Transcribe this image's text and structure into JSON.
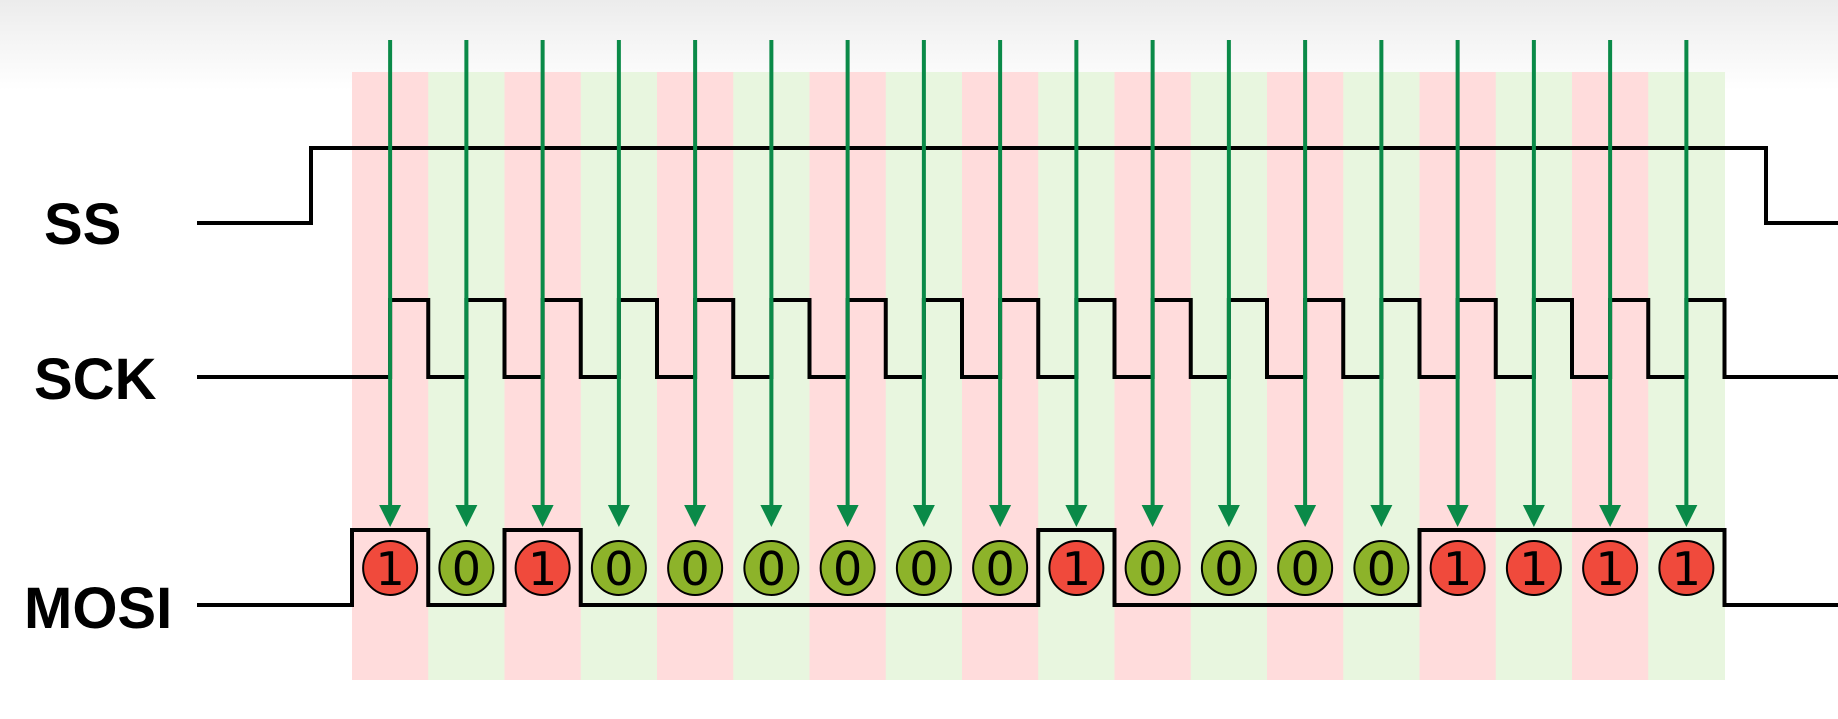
{
  "signals": [
    {
      "id": "ss",
      "label": "SS"
    },
    {
      "id": "sck",
      "label": "SCK"
    },
    {
      "id": "mosi",
      "label": "MOSI"
    }
  ],
  "mosi_bits": [
    "1",
    "0",
    "1",
    "0",
    "0",
    "0",
    "0",
    "0",
    "0",
    "1",
    "0",
    "0",
    "0",
    "0",
    "1",
    "1",
    "1",
    "1"
  ],
  "colors": {
    "bit_one_fill": "#f04a3c",
    "bit_zero_fill": "#8db32a",
    "band_one": "#ffdcdc",
    "band_zero": "#e8f6df",
    "arrow": "#0a8a48",
    "line": "#000000"
  }
}
